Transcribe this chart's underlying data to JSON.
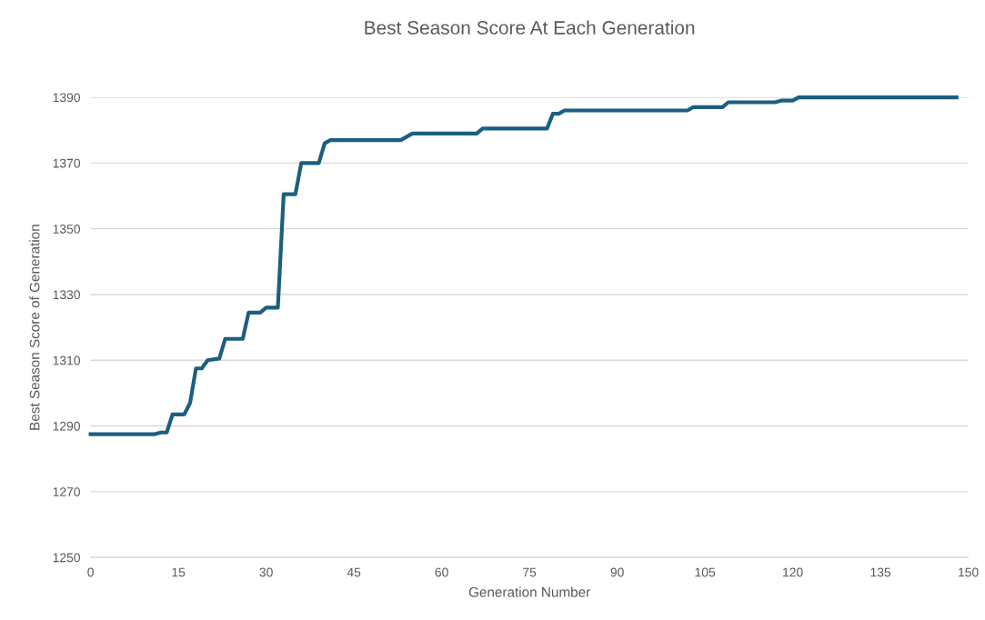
{
  "chart_data": {
    "type": "line",
    "title": "Best Season Score At Each Generation",
    "xlabel": "Generation Number",
    "ylabel": "Best Season Score of Generation",
    "series": [
      {
        "color": "#1b5f80",
        "x": [
          0,
          11,
          12,
          13,
          14,
          16,
          17,
          18,
          19,
          20,
          22,
          23,
          26,
          27,
          29,
          30,
          32,
          33,
          35,
          36,
          39,
          40,
          41,
          53,
          55,
          66,
          67,
          78,
          79,
          80,
          81,
          102,
          103,
          108,
          109,
          117,
          118,
          120,
          121,
          148
        ],
        "values": [
          1287.5,
          1287.5,
          1288,
          1288,
          1293.5,
          1293.5,
          1297,
          1307.5,
          1307.5,
          1310,
          1310.5,
          1316.5,
          1316.5,
          1324.5,
          1324.5,
          1326,
          1326,
          1360.5,
          1360.5,
          1370,
          1370,
          1376,
          1377,
          1377,
          1379,
          1379,
          1380.5,
          1380.5,
          1385,
          1385,
          1386,
          1386,
          1387,
          1387,
          1388.5,
          1388.5,
          1389,
          1389,
          1390,
          1390
        ]
      }
    ],
    "xlim": [
      0,
      150
    ],
    "xticks": [
      0,
      15,
      30,
      45,
      60,
      75,
      90,
      105,
      120,
      135,
      150
    ],
    "ylim": [
      1250,
      1390
    ],
    "yticks": [
      1250,
      1270,
      1290,
      1310,
      1330,
      1350,
      1370,
      1390
    ],
    "grid": "y",
    "marker": "none",
    "line_style": "solid"
  }
}
